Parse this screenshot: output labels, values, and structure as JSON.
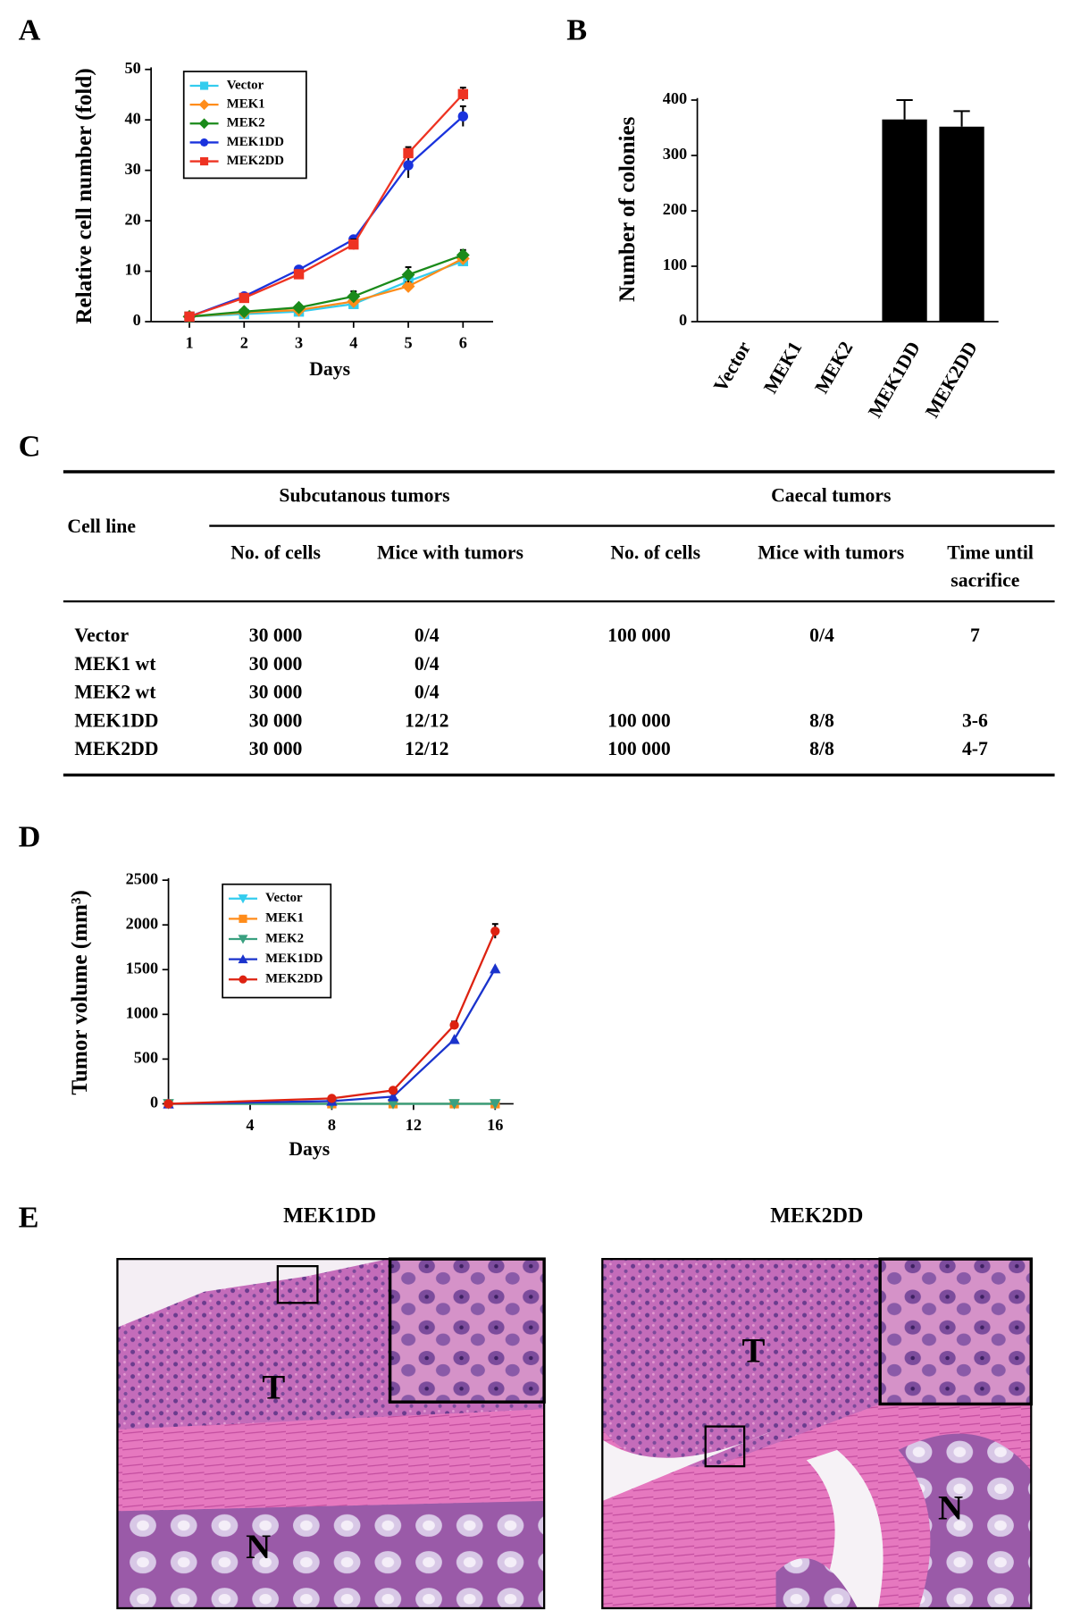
{
  "panel_labels": [
    "A",
    "B",
    "C",
    "D",
    "E"
  ],
  "chart_data": [
    {
      "type": "line",
      "y_label": "Relative cell number (fold)",
      "x_label": "Days",
      "x": [
        1,
        2,
        3,
        4,
        5,
        6
      ],
      "xlim": [
        0.3,
        6.55
      ],
      "xticks": [
        1,
        2,
        3,
        4,
        5,
        6
      ],
      "ylim": [
        0,
        50
      ],
      "yticks": [
        0,
        10,
        20,
        30,
        40,
        50
      ],
      "legend": "top-left",
      "series": [
        {
          "name": "Vector",
          "color": "#33ccee",
          "marker": "square",
          "values": [
            1,
            1.5,
            2,
            3.5,
            8,
            12
          ],
          "errors": [
            0.1,
            0.2,
            0.3,
            0.5,
            1,
            1
          ]
        },
        {
          "name": "MEK1",
          "color": "#ff8c1a",
          "marker": "diamond",
          "values": [
            1,
            1.8,
            2.3,
            4,
            7,
            12.5
          ],
          "errors": [
            0.1,
            0.2,
            0.3,
            0.5,
            0.8,
            1
          ]
        },
        {
          "name": "MEK2",
          "color": "#1a8a1a",
          "marker": "diamond",
          "values": [
            1,
            2,
            2.8,
            5,
            9.3,
            13.2
          ],
          "errors": [
            0.1,
            0.3,
            0.3,
            1,
            1.5,
            1
          ]
        },
        {
          "name": "MEK1DD",
          "color": "#1a33dd",
          "marker": "circle",
          "values": [
            1,
            5,
            10.3,
            16.3,
            31,
            40.7
          ],
          "errors": [
            0.1,
            0.3,
            0.3,
            0.5,
            2.5,
            2
          ]
        },
        {
          "name": "MEK2DD",
          "color": "#ee3322",
          "marker": "square",
          "values": [
            1,
            4.7,
            9.4,
            15.3,
            33.4,
            45.1
          ],
          "errors": [
            0.1,
            0.3,
            0.4,
            1,
            1.2,
            1.3
          ]
        }
      ]
    },
    {
      "type": "bar",
      "y_label": "Number of colonies",
      "categories": [
        "Vector",
        "MEK1",
        "MEK2",
        "MEK1DD",
        "MEK2DD"
      ],
      "values": [
        0,
        0,
        0,
        365,
        352
      ],
      "errors": [
        0,
        0,
        0,
        35,
        28
      ],
      "color": "#000000",
      "ylim": [
        0,
        400
      ],
      "yticks": [
        0,
        100,
        200,
        300,
        400
      ]
    },
    {
      "type": "line",
      "y_label": "Tumor volume (mm³)",
      "x_label": "Days",
      "x": [
        0,
        8,
        11,
        14,
        16
      ],
      "xlim": [
        0,
        16.9
      ],
      "xticks": [
        4,
        8,
        12,
        16
      ],
      "ylim": [
        0,
        2500
      ],
      "yticks": [
        0,
        500,
        1000,
        1500,
        2000,
        2500
      ],
      "legend": "top-left",
      "series": [
        {
          "name": "Vector",
          "color": "#33ccee",
          "marker": "down-triangle",
          "values": [
            0,
            0,
            0,
            0,
            0
          ]
        },
        {
          "name": "MEK1",
          "color": "#ff8c1a",
          "marker": "square",
          "values": [
            0,
            0,
            0,
            0,
            0
          ]
        },
        {
          "name": "MEK2",
          "color": "#3aa080",
          "marker": "down-triangle",
          "values": [
            0,
            0,
            0,
            0,
            0
          ]
        },
        {
          "name": "MEK1DD",
          "color": "#1a33cc",
          "marker": "triangle",
          "values": [
            0,
            30,
            80,
            720,
            1510
          ]
        },
        {
          "name": "MEK2DD",
          "color": "#dd2211",
          "marker": "circle",
          "values": [
            0,
            60,
            150,
            880,
            1930
          ],
          "errors": [
            0,
            10,
            20,
            40,
            80
          ]
        }
      ]
    }
  ],
  "table": {
    "header": {
      "cell_line": "Cell line",
      "groups": [
        "Subcutanous tumors",
        "Caecal tumors"
      ],
      "columns": [
        "No. of cells",
        "Mice with tumors",
        "No. of cells",
        "Mice with tumors"
      ],
      "time": [
        "Time until",
        "sacrifice"
      ]
    },
    "rows": [
      [
        "Vector",
        "30 000",
        "0/4",
        "100 000",
        "0/4",
        "7"
      ],
      [
        "MEK1 wt",
        "30 000",
        "0/4",
        null,
        null,
        null
      ],
      [
        "MEK2 wt",
        "30 000",
        "0/4",
        null,
        null,
        null
      ],
      [
        "MEK1DD",
        "30 000",
        "12/12",
        "100 000",
        "8/8",
        "3-6"
      ],
      [
        "MEK2DD",
        "30 000",
        "12/12",
        "100 000",
        "8/8",
        "4-7"
      ]
    ]
  },
  "images": [
    {
      "title": "MEK1DD",
      "labels": [
        "T",
        "N"
      ]
    },
    {
      "title": "MEK2DD",
      "labels": [
        "T",
        "N"
      ]
    }
  ]
}
